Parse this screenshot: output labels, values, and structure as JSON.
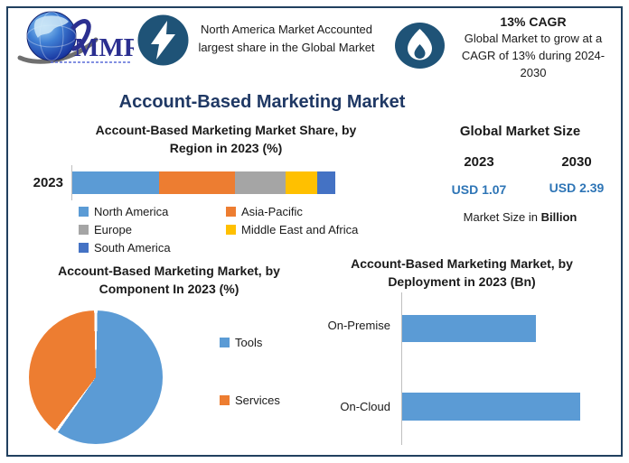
{
  "meta": {
    "border_color": "#21405F",
    "title_color": "#1F3864",
    "accent_blue": "#2E75B6",
    "icon_bg": "#1F5377"
  },
  "logo": {
    "text": "MMR"
  },
  "header": {
    "highlight_region": {
      "icon": "lightning-bolt-icon",
      "text": "North America Market Accounted largest share in the Global Market"
    },
    "highlight_cagr": {
      "icon": "flame-icon",
      "title": "13% CAGR",
      "text": "Global Market to grow at a CAGR of 13% during 2024-2030"
    }
  },
  "page_title": "Account-Based Marketing Market",
  "market_size": {
    "title": "Global Market Size",
    "columns": [
      {
        "year": "2023",
        "value": "USD 1.07"
      },
      {
        "year": "2030",
        "value": "USD 2.39"
      }
    ],
    "caption_prefix": "Market Size in ",
    "caption_bold": "Billion"
  },
  "chart_data": [
    {
      "id": "region_share",
      "type": "bar",
      "stacked": true,
      "orientation": "horizontal",
      "title": "Account-Based Marketing Market Share, by Region in 2023 (%)",
      "categories": [
        "2023"
      ],
      "series": [
        {
          "name": "North America",
          "values": [
            33
          ],
          "color": "#5B9BD5"
        },
        {
          "name": "Asia-Pacific",
          "values": [
            29
          ],
          "color": "#ED7D31"
        },
        {
          "name": "Europe",
          "values": [
            19
          ],
          "color": "#A5A5A5"
        },
        {
          "name": "Middle East and Africa",
          "values": [
            12
          ],
          "color": "#FFC000"
        },
        {
          "name": "South America",
          "values": [
            7
          ],
          "color": "#4472C4"
        }
      ],
      "xlim": [
        0,
        100
      ],
      "grid": false,
      "legend_position": "bottom"
    },
    {
      "id": "component_split",
      "type": "pie",
      "title": "Account-Based Marketing Market, by Component In 2023 (%)",
      "labels": [
        "Tools",
        "Services"
      ],
      "values": [
        60,
        40
      ],
      "colors": [
        "#5B9BD5",
        "#ED7D31"
      ],
      "legend_position": "right"
    },
    {
      "id": "deployment",
      "type": "bar",
      "orientation": "horizontal",
      "title": "Account-Based Marketing Market, by Deployment in 2023 (Bn)",
      "categories": [
        "On-Premise",
        "On-Cloud"
      ],
      "values": [
        0.46,
        0.61
      ],
      "xmax": 0.76,
      "color": "#5B9BD5",
      "grid": false
    }
  ]
}
